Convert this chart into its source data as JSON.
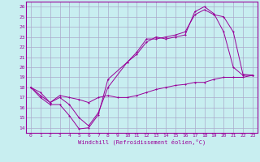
{
  "xlabel": "Windchill (Refroidissement éolien,°C)",
  "bg_color": "#c8eef0",
  "grid_color": "#aaaacc",
  "line_color": "#990099",
  "xlim": [
    -0.5,
    23.5
  ],
  "ylim": [
    13.5,
    26.5
  ],
  "xticks": [
    0,
    1,
    2,
    3,
    4,
    5,
    6,
    7,
    8,
    9,
    10,
    11,
    12,
    13,
    14,
    15,
    16,
    17,
    18,
    19,
    20,
    21,
    22,
    23
  ],
  "yticks": [
    14,
    15,
    16,
    17,
    18,
    19,
    20,
    21,
    22,
    23,
    24,
    25,
    26
  ],
  "line1_x": [
    0,
    1,
    2,
    3,
    4,
    5,
    6,
    7,
    8,
    10,
    11,
    12,
    13,
    14,
    15,
    16,
    17,
    18,
    19,
    20,
    21,
    22,
    23
  ],
  "line1_y": [
    18,
    17.0,
    16.3,
    16.3,
    15.2,
    13.9,
    14.0,
    15.3,
    18.8,
    20.5,
    21.3,
    22.5,
    23.0,
    22.8,
    23.0,
    23.2,
    25.5,
    26.0,
    25.3,
    23.5,
    20.0,
    19.2,
    19.2
  ],
  "line2_x": [
    0,
    1,
    2,
    3,
    4,
    5,
    6,
    7,
    8,
    10,
    11,
    12,
    13,
    14,
    15,
    16,
    17,
    18,
    19,
    20,
    21,
    22,
    23
  ],
  "line2_y": [
    18,
    17.2,
    16.5,
    17.0,
    16.3,
    15.0,
    14.2,
    15.5,
    18.0,
    20.5,
    21.5,
    22.8,
    22.8,
    23.0,
    23.2,
    23.5,
    25.2,
    25.7,
    25.2,
    25.0,
    23.5,
    19.3,
    19.2
  ],
  "line3_x": [
    0,
    1,
    2,
    3,
    4,
    5,
    6,
    7,
    8,
    9,
    10,
    11,
    12,
    13,
    14,
    15,
    16,
    17,
    18,
    19,
    20,
    21,
    22,
    23
  ],
  "line3_y": [
    18.0,
    17.5,
    16.5,
    17.2,
    17.0,
    16.8,
    16.5,
    17.0,
    17.2,
    17.0,
    17.0,
    17.2,
    17.5,
    17.8,
    18.0,
    18.2,
    18.3,
    18.5,
    18.5,
    18.8,
    19.0,
    19.0,
    19.0,
    19.2
  ]
}
